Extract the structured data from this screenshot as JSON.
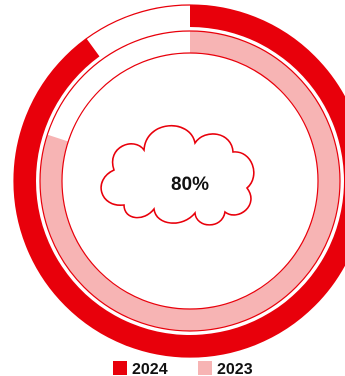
{
  "chart_data": {
    "type": "radial-progress",
    "center_label": "80%",
    "center_icon": "cloud-icon",
    "series": [
      {
        "name": "2024",
        "value": 90,
        "max": 100,
        "color": "#e8000b"
      },
      {
        "name": "2023",
        "value": 80,
        "max": 100,
        "color": "#f7b4b4"
      }
    ],
    "legend": {
      "position": "bottom",
      "items": [
        "2024",
        "2023"
      ]
    }
  }
}
